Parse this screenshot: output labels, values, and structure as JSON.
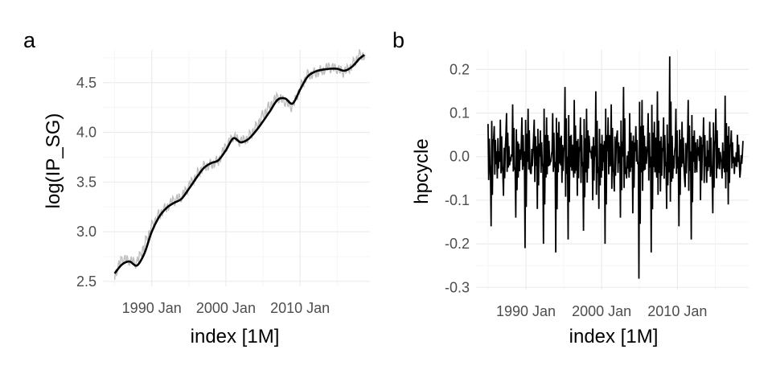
{
  "figure": {
    "panel_a_label": "a",
    "panel_b_label": "b"
  },
  "colors": {
    "raw_series": "#bebebe",
    "trend_series": "#000000",
    "cycle_series": "#000000",
    "grid": "#ebebeb",
    "tick_text": "#4d4d4d"
  },
  "chart_data": [
    {
      "type": "line",
      "panel": "a",
      "title": "",
      "xlabel": "index [1M]",
      "ylabel": "log(IP_SG)",
      "x_tick_labels": [
        "1990 Jan",
        "2000 Jan",
        "2010 Jan"
      ],
      "x_tick_values": [
        "1990-01",
        "2000-01",
        "2010-01"
      ],
      "xlim": [
        "1983-06",
        "2019-06"
      ],
      "ylim": [
        2.45,
        4.83
      ],
      "y_ticks": [
        2.5,
        3.0,
        3.5,
        4.0,
        4.5
      ],
      "y_tick_labels": [
        "2.5",
        "3.0",
        "3.5",
        "4.0",
        "4.5"
      ],
      "grid": true,
      "series": [
        {
          "role": "raw",
          "x": [
            "1985-01",
            "1986-01",
            "1987-01",
            "1988-01",
            "1989-01",
            "1990-01",
            "1991-01",
            "1992-01",
            "1993-01",
            "1994-01",
            "1995-01",
            "1996-01",
            "1997-01",
            "1998-01",
            "1999-01",
            "2000-01",
            "2001-01",
            "2002-01",
            "2003-01",
            "2004-01",
            "2005-01",
            "2006-01",
            "2007-01",
            "2008-01",
            "2009-01",
            "2010-01",
            "2011-01",
            "2012-01",
            "2013-01",
            "2014-01",
            "2015-01",
            "2016-01",
            "2017-01",
            "2018-01"
          ],
          "values": [
            2.57,
            2.72,
            2.7,
            2.68,
            2.87,
            3.06,
            3.18,
            3.25,
            3.31,
            3.34,
            3.45,
            3.57,
            3.66,
            3.68,
            3.72,
            3.85,
            3.95,
            3.9,
            3.95,
            4.05,
            4.18,
            4.28,
            4.35,
            4.3,
            4.25,
            4.45,
            4.58,
            4.6,
            4.63,
            4.65,
            4.63,
            4.6,
            4.68,
            4.78
          ]
        },
        {
          "role": "trend",
          "x": [
            "1985-01",
            "1986-01",
            "1987-01",
            "1988-01",
            "1989-01",
            "1990-01",
            "1991-01",
            "1992-01",
            "1993-01",
            "1994-01",
            "1995-01",
            "1996-01",
            "1997-01",
            "1998-01",
            "1999-01",
            "2000-01",
            "2001-01",
            "2002-01",
            "2003-01",
            "2004-01",
            "2005-01",
            "2006-01",
            "2007-01",
            "2008-01",
            "2009-01",
            "2010-01",
            "2011-01",
            "2012-01",
            "2013-01",
            "2014-01",
            "2015-01",
            "2016-01",
            "2017-01",
            "2018-01",
            "2018-09"
          ],
          "values": [
            2.58,
            2.67,
            2.7,
            2.66,
            2.78,
            3.0,
            3.15,
            3.24,
            3.29,
            3.33,
            3.43,
            3.54,
            3.64,
            3.69,
            3.72,
            3.82,
            3.94,
            3.9,
            3.93,
            4.01,
            4.11,
            4.22,
            4.33,
            4.34,
            4.29,
            4.43,
            4.56,
            4.61,
            4.63,
            4.64,
            4.64,
            4.62,
            4.66,
            4.74,
            4.78
          ]
        }
      ]
    },
    {
      "type": "line",
      "panel": "b",
      "title": "",
      "xlabel": "index [1M]",
      "ylabel": "hpcycle",
      "x_tick_labels": [
        "1990 Jan",
        "2000 Jan",
        "2010 Jan"
      ],
      "x_tick_values": [
        "1990-01",
        "2000-01",
        "2010-01"
      ],
      "xlim": [
        "1983-06",
        "2019-06"
      ],
      "ylim": [
        -0.305,
        0.245
      ],
      "y_ticks": [
        -0.3,
        -0.2,
        -0.1,
        0.0,
        0.1,
        0.2
      ],
      "y_tick_labels": [
        "-0.3",
        "-0.2",
        "-0.1",
        "0.0",
        "0.1",
        "0.2"
      ],
      "grid": true,
      "series": [
        {
          "role": "cycle",
          "x_start": "1985-01",
          "x_end": "2018-09",
          "frequency": "monthly",
          "values": [
            0.075,
            -0.16,
            0.07,
            -0.05,
            0.085,
            -0.09,
            0.1,
            -0.02,
            0.12,
            -0.14,
            0.03,
            0.09,
            -0.21,
            0.11,
            -0.04,
            0.085,
            -0.12,
            0.06,
            -0.2,
            0.09,
            -0.02,
            0.1,
            -0.22,
            0.08,
            -0.06,
            0.16,
            -0.19,
            0.05,
            0.13,
            -0.09,
            0.09,
            -0.17,
            0.11,
            0.02,
            -0.1,
            0.15,
            -0.12,
            0.05,
            -0.2,
            0.09,
            0.12,
            -0.08,
            0.06,
            -0.14,
            0.16,
            -0.05,
            0.1,
            -0.13,
            0.07,
            -0.28,
            0.13,
            -0.03,
            0.1,
            -0.22,
            0.08,
            0.15,
            -0.08,
            0.09,
            -0.12,
            0.23,
            -0.05,
            0.11,
            -0.16,
            0.08,
            -0.07,
            0.13,
            -0.19,
            0.06,
            0.04,
            -0.1,
            0.09,
            -0.06,
            0.08,
            -0.13,
            0.11,
            0.02,
            -0.05,
            0.14,
            -0.11,
            0.06,
            -0.04,
            0.05,
            -0.03
          ]
        }
      ]
    }
  ]
}
